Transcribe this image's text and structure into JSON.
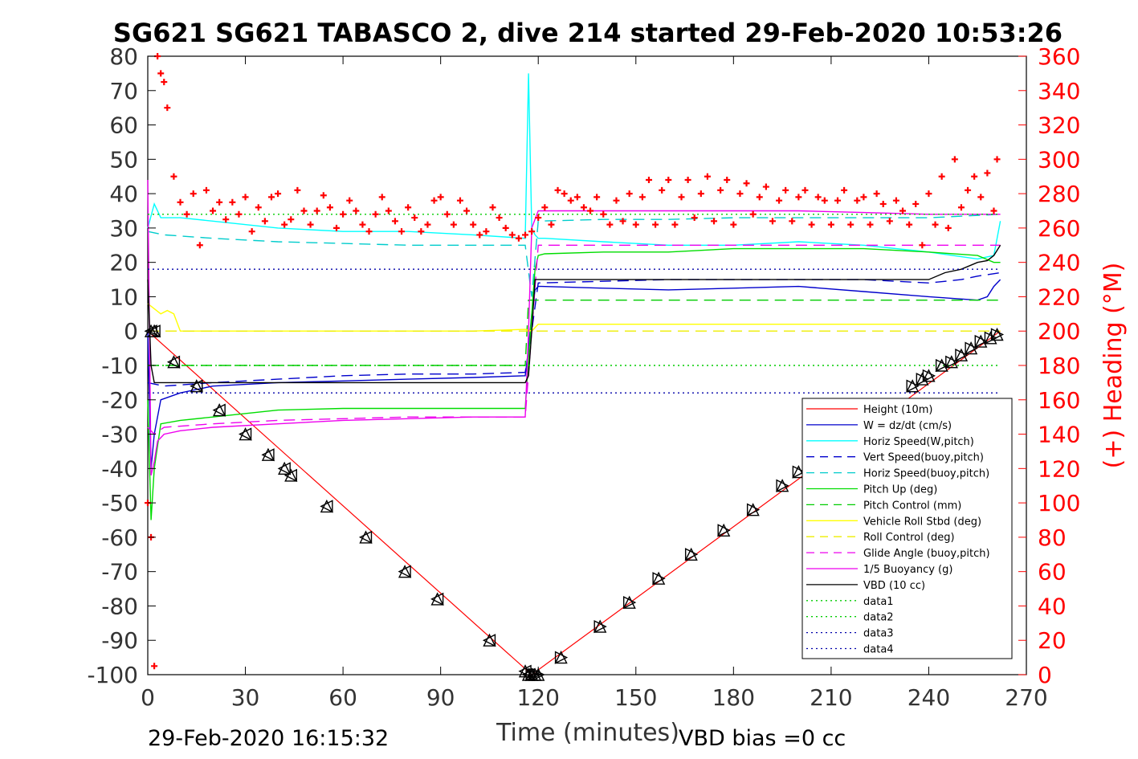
{
  "chart_data": {
    "type": "line",
    "title": "SG621 SG621 TABASCO 2, dive 214 started 29-Feb-2020 10:53:26",
    "xlabel": "Time (minutes)",
    "ylabel": "",
    "y2label": "(+) Heading (°M)",
    "xlim": [
      0,
      270
    ],
    "ylim": [
      -100,
      80
    ],
    "y2lim": [
      0,
      360
    ],
    "xticks": [
      0,
      30,
      60,
      90,
      120,
      150,
      180,
      210,
      240,
      270
    ],
    "yticks": [
      -100,
      -90,
      -80,
      -70,
      -60,
      -50,
      -40,
      -30,
      -20,
      -10,
      0,
      10,
      20,
      30,
      40,
      50,
      60,
      70,
      80
    ],
    "y2ticks": [
      0,
      20,
      40,
      60,
      80,
      100,
      120,
      140,
      160,
      180,
      200,
      220,
      240,
      260,
      280,
      300,
      320,
      340,
      360
    ],
    "grid": false,
    "legend_position": "bottom-right",
    "footer_left": "29-Feb-2020 16:15:32",
    "footer_right": "VBD bias =0 cc",
    "colors": {
      "height": "#ff0000",
      "w": "#0000cc",
      "horiz_w": "#00ffff",
      "vert_buoy": "#0000cc",
      "horiz_buoy": "#00cccc",
      "pitch": "#00dd00",
      "pitch_ctrl": "#00cc00",
      "roll": "#ffff00",
      "roll_ctrl": "#eeee00",
      "glide": "#ee00ee",
      "buoy": "#ee00ee",
      "vbd": "#000000",
      "heading": "#ff0000",
      "right_axis": "#ff0000"
    },
    "legend": [
      {
        "name": "Height (10m)",
        "color": "#ff0000",
        "dash": "solid"
      },
      {
        "name": "W = dz/dt (cm/s)",
        "color": "#0000cc",
        "dash": "solid"
      },
      {
        "name": "Horiz Speed(W,pitch)",
        "color": "#00ffff",
        "dash": "solid"
      },
      {
        "name": "Vert Speed(buoy,pitch)",
        "color": "#0000cc",
        "dash": "dashed"
      },
      {
        "name": "Horiz Speed(buoy,pitch)",
        "color": "#00cccc",
        "dash": "dashed"
      },
      {
        "name": "Pitch Up (deg)",
        "color": "#00dd00",
        "dash": "solid"
      },
      {
        "name": "Pitch Control (mm)",
        "color": "#00cc00",
        "dash": "dashed"
      },
      {
        "name": "Vehicle Roll Stbd (deg)",
        "color": "#ffff00",
        "dash": "solid"
      },
      {
        "name": "Roll Control (deg)",
        "color": "#eeee00",
        "dash": "dashed"
      },
      {
        "name": "Glide Angle (buoy,pitch)",
        "color": "#ee00ee",
        "dash": "dashed"
      },
      {
        "name": "1/5 Buoyancy (g)",
        "color": "#ee00ee",
        "dash": "solid"
      },
      {
        "name": "VBD (10 cc)",
        "color": "#000000",
        "dash": "solid"
      },
      {
        "name": "data1",
        "color": "#00cc00",
        "dash": "dotted"
      },
      {
        "name": "data2",
        "color": "#00cc00",
        "dash": "dotted"
      },
      {
        "name": "data3",
        "color": "#0000aa",
        "dash": "dotted"
      },
      {
        "name": "data4",
        "color": "#0000aa",
        "dash": "dotted"
      }
    ],
    "series": [
      {
        "name": "Height (10m)",
        "axis": "left",
        "x": [
          0,
          118,
          262
        ],
        "y": [
          0,
          -100,
          0
        ]
      },
      {
        "name": "W = dz/dt (cm/s)",
        "axis": "left",
        "x": [
          0,
          1,
          2,
          4,
          10,
          20,
          40,
          60,
          80,
          100,
          116,
          117,
          118,
          119,
          120,
          121,
          140,
          160,
          180,
          200,
          220,
          240,
          255,
          258,
          260,
          262
        ],
        "y": [
          0,
          -40,
          -30,
          -20,
          -18,
          -16,
          -15,
          -14.5,
          -14,
          -13.5,
          -13,
          -5,
          5,
          12,
          13,
          13,
          12.5,
          12,
          12.5,
          13,
          11.5,
          10,
          9,
          10,
          13,
          15
        ]
      },
      {
        "name": "Horiz Speed(W,pitch)",
        "axis": "left",
        "x": [
          0,
          2,
          4,
          10,
          20,
          40,
          60,
          80,
          100,
          116,
          117,
          118,
          119,
          120,
          122,
          140,
          160,
          180,
          200,
          220,
          240,
          255,
          260,
          262
        ],
        "y": [
          30,
          37,
          33,
          33,
          32,
          30,
          29,
          29,
          28,
          27,
          75,
          30,
          28,
          27,
          27,
          26,
          25,
          25,
          26,
          25,
          23,
          21,
          22,
          32
        ]
      },
      {
        "name": "Vert Speed(buoy,pitch)",
        "axis": "left",
        "x": [
          0,
          5,
          20,
          40,
          60,
          80,
          100,
          116,
          118,
          120,
          140,
          160,
          180,
          200,
          220,
          240,
          250,
          255,
          262
        ],
        "y": [
          -15,
          -16,
          -15,
          -14,
          -13,
          -12.5,
          -12.5,
          -12,
          0,
          14,
          14.5,
          15,
          15,
          15,
          15,
          14,
          15,
          16,
          17
        ]
      },
      {
        "name": "Horiz Speed(buoy,pitch)",
        "axis": "left",
        "x": [
          0,
          5,
          20,
          40,
          60,
          80,
          100,
          116,
          118,
          120,
          140,
          160,
          180,
          200,
          220,
          240,
          262
        ],
        "y": [
          29,
          28,
          27,
          26,
          25.5,
          25,
          25,
          25,
          10,
          32,
          32.5,
          32.5,
          33,
          33,
          33,
          33,
          34
        ]
      },
      {
        "name": "Pitch Up (deg)",
        "axis": "left",
        "x": [
          0,
          1,
          2,
          4,
          10,
          20,
          40,
          60,
          80,
          100,
          116,
          117,
          118,
          119,
          120,
          122,
          140,
          160,
          180,
          200,
          220,
          240,
          255,
          260,
          262
        ],
        "y": [
          -20,
          -55,
          -40,
          -27,
          -26,
          -25,
          -23,
          -22.5,
          -22.5,
          -22.5,
          -22.5,
          -8,
          5,
          18,
          22,
          22.5,
          23,
          23,
          24,
          24,
          24,
          23,
          22,
          20,
          20
        ]
      },
      {
        "name": "Pitch Control (mm)",
        "axis": "left",
        "x": [
          0,
          116,
          117,
          262
        ],
        "y": [
          -10,
          -10,
          9,
          9
        ]
      },
      {
        "name": "Vehicle Roll Stbd (deg)",
        "axis": "left",
        "x": [
          0,
          4,
          6,
          8,
          10,
          20,
          30,
          40,
          60,
          80,
          100,
          116,
          118,
          120,
          140,
          160,
          180,
          200,
          220,
          240,
          255,
          260,
          262
        ],
        "y": [
          8,
          5,
          6,
          5,
          0,
          0,
          0,
          0,
          0,
          0,
          0,
          0.5,
          0,
          2,
          2,
          2,
          2,
          2,
          2,
          2,
          2,
          2,
          2
        ]
      },
      {
        "name": "Roll Control (deg)",
        "axis": "left",
        "x": [
          0,
          262
        ],
        "y": [
          0,
          0
        ]
      },
      {
        "name": "Glide Angle (buoy,pitch)",
        "axis": "left",
        "x": [
          0,
          2,
          5,
          20,
          40,
          60,
          80,
          100,
          116,
          118,
          120,
          140,
          160,
          180,
          200,
          220,
          240,
          262
        ],
        "y": [
          -28,
          -30,
          -28,
          -27,
          -26,
          -25.5,
          -25,
          -25,
          -25,
          0,
          25,
          25,
          25,
          25,
          25,
          25,
          25,
          25
        ]
      },
      {
        "name": "1/5 Buoyancy (g)",
        "axis": "left",
        "x": [
          0,
          1,
          2,
          3,
          5,
          10,
          20,
          40,
          60,
          80,
          100,
          116,
          117,
          118,
          120,
          140,
          160,
          180,
          200,
          220,
          240,
          255,
          262
        ],
        "y": [
          44,
          -42,
          -38,
          -32,
          -30,
          -29,
          -28,
          -27,
          -26,
          -25.5,
          -25,
          -25,
          0,
          30,
          35,
          35,
          35,
          35,
          35,
          34.5,
          34,
          34,
          34
        ]
      },
      {
        "name": "VBD (10 cc)",
        "axis": "left",
        "x": [
          0,
          1,
          2,
          116,
          117,
          118,
          119,
          240,
          245,
          250,
          255,
          258,
          260,
          262
        ],
        "y": [
          15,
          -10,
          -15,
          -15,
          -13,
          0,
          15,
          15,
          17,
          18,
          20,
          20.5,
          22,
          25
        ]
      },
      {
        "name": "data1",
        "axis": "left",
        "x": [
          0,
          262
        ],
        "y": [
          34,
          34
        ]
      },
      {
        "name": "data2",
        "axis": "left",
        "x": [
          0,
          262
        ],
        "y": [
          -10,
          -10
        ]
      },
      {
        "name": "data3",
        "axis": "left",
        "x": [
          0,
          262
        ],
        "y": [
          18,
          18
        ]
      },
      {
        "name": "data4",
        "axis": "left",
        "x": [
          0,
          262
        ],
        "y": [
          -18,
          -18
        ]
      },
      {
        "name": "Heading",
        "axis": "right",
        "x": [
          0,
          1,
          2,
          3,
          4,
          5,
          6,
          8,
          10,
          12,
          14,
          16,
          18,
          20,
          22,
          24,
          26,
          28,
          30,
          32,
          34,
          36,
          38,
          40,
          42,
          44,
          46,
          48,
          50,
          52,
          54,
          56,
          58,
          60,
          62,
          64,
          66,
          68,
          70,
          72,
          74,
          76,
          78,
          80,
          82,
          84,
          86,
          88,
          90,
          92,
          94,
          96,
          98,
          100,
          102,
          104,
          106,
          108,
          110,
          112,
          114,
          116,
          118,
          120,
          122,
          124,
          126,
          128,
          130,
          132,
          134,
          136,
          138,
          140,
          142,
          144,
          146,
          148,
          150,
          152,
          154,
          156,
          158,
          160,
          162,
          164,
          166,
          168,
          170,
          172,
          174,
          176,
          178,
          180,
          182,
          184,
          186,
          188,
          190,
          192,
          194,
          196,
          198,
          200,
          202,
          204,
          206,
          208,
          210,
          212,
          214,
          216,
          218,
          220,
          222,
          224,
          226,
          228,
          230,
          232,
          234,
          236,
          238,
          240,
          242,
          244,
          246,
          248,
          250,
          252,
          254,
          256,
          258,
          260,
          261
        ],
        "y": [
          100,
          80,
          5,
          360,
          350,
          345,
          330,
          290,
          275,
          268,
          280,
          250,
          282,
          270,
          275,
          265,
          275,
          268,
          278,
          258,
          272,
          264,
          278,
          280,
          262,
          265,
          282,
          270,
          262,
          270,
          279,
          272,
          260,
          268,
          276,
          270,
          262,
          258,
          268,
          278,
          270,
          264,
          258,
          272,
          266,
          258,
          262,
          276,
          278,
          268,
          262,
          276,
          270,
          262,
          256,
          258,
          272,
          266,
          260,
          256,
          254,
          256,
          258,
          266,
          272,
          262,
          282,
          280,
          276,
          278,
          272,
          270,
          278,
          268,
          262,
          276,
          264,
          280,
          262,
          278,
          288,
          262,
          282,
          288,
          262,
          278,
          288,
          266,
          280,
          290,
          264,
          282,
          288,
          262,
          280,
          286,
          268,
          278,
          284,
          264,
          276,
          282,
          264,
          278,
          282,
          262,
          278,
          276,
          262,
          276,
          282,
          262,
          276,
          278,
          262,
          280,
          274,
          264,
          276,
          270,
          262,
          274,
          250,
          280,
          262,
          290,
          260,
          300,
          272,
          282,
          290,
          278,
          292,
          270,
          300
        ]
      }
    ],
    "markers_down": {
      "x": [
        1,
        2,
        8,
        15,
        22,
        30,
        37,
        42,
        44,
        55,
        67,
        79,
        89,
        105,
        116,
        117
      ],
      "y": [
        0,
        0,
        -9,
        -16,
        -23,
        -30,
        -36,
        -40,
        -42,
        -51,
        -60,
        -70,
        -78,
        -90,
        -99,
        -100
      ]
    },
    "markers_up": {
      "x": [
        118,
        119,
        120,
        127,
        139,
        148,
        157,
        167,
        177,
        186,
        195,
        200,
        213,
        223,
        235,
        238,
        240,
        244,
        247,
        250,
        253,
        256,
        259,
        261
      ],
      "y": [
        -100,
        -100,
        -100,
        -95,
        -86,
        -79,
        -72,
        -65,
        -58,
        -52,
        -45,
        -41,
        -32,
        -25,
        -16,
        -14,
        -13,
        -10,
        -9,
        -7,
        -5,
        -3,
        -2,
        -1
      ]
    }
  }
}
